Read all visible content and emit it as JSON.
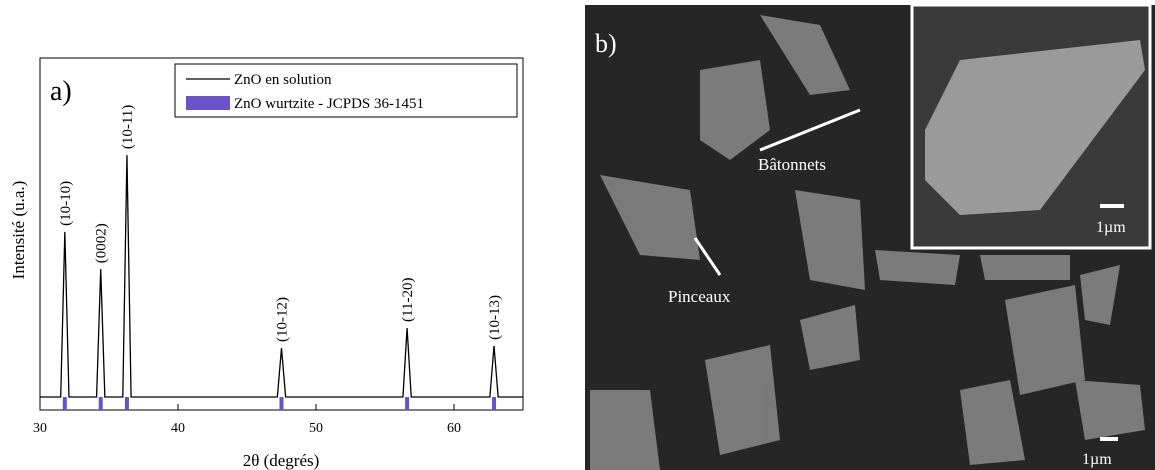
{
  "chart_data": {
    "type": "line",
    "panel_label": "a)",
    "x_label": "2θ (degrés)",
    "y_label": "Intensité (u.a.)",
    "xlim": [
      30,
      65
    ],
    "xticks": [
      30,
      40,
      50,
      60
    ],
    "ylim": [
      0,
      100
    ],
    "series": [
      {
        "name": "ZnO en solution",
        "color": "#000000",
        "x": [
          30,
          31.5,
          31.8,
          32.1,
          34.1,
          34.4,
          34.7,
          36.0,
          36.3,
          36.6,
          47.2,
          47.5,
          47.8,
          56.3,
          56.6,
          56.9,
          62.6,
          62.9,
          63.2,
          65
        ],
        "values": [
          3.7,
          3.7,
          50.6,
          3.7,
          3.7,
          40,
          3.7,
          3.7,
          72.4,
          3.7,
          3.7,
          17.6,
          3.7,
          3.7,
          23.3,
          3.7,
          3.7,
          18.2,
          3.7,
          3.7
        ]
      },
      {
        "name": "ZnO wurtzite - JCPDS 36-1451",
        "color": "#6a52c8",
        "type": "reference",
        "x": [
          31.8,
          34.4,
          36.3,
          47.5,
          56.6,
          62.9
        ]
      }
    ],
    "annotations": [
      {
        "text": "(10-10)",
        "x": 31.8
      },
      {
        "text": "(0002)",
        "x": 34.4
      },
      {
        "text": "(10-11)",
        "x": 36.3
      },
      {
        "text": "(10-12)",
        "x": 47.5
      },
      {
        "text": "(11-20)",
        "x": 56.6
      },
      {
        "text": "(10-13)",
        "x": 62.9
      }
    ]
  },
  "image_panel": {
    "label": "b)",
    "arrow_labels": [
      "Bâtonnets",
      "Pinceaux"
    ],
    "scale_bars": [
      "1µm",
      "1µm"
    ]
  }
}
